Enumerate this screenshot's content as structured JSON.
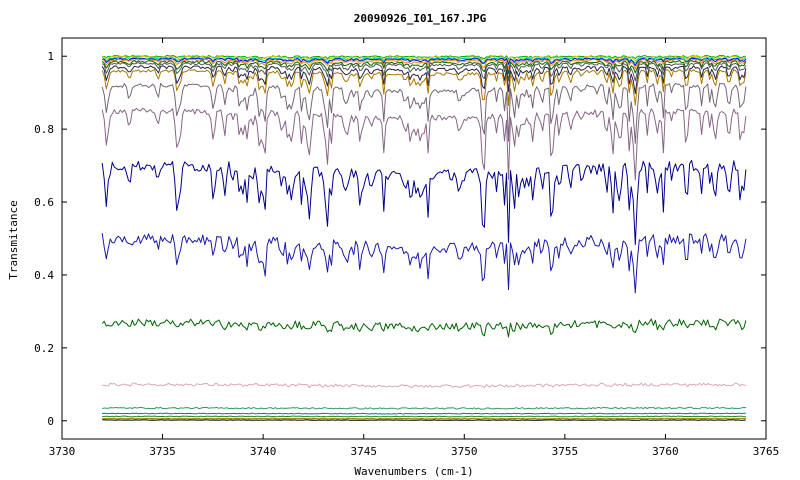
{
  "chart_data": {
    "type": "line",
    "title": "20090926_I01_167.JPG",
    "xlabel": "Wavenumbers (cm-1)",
    "ylabel": "Transmitance",
    "xlim": [
      3730,
      3765
    ],
    "ylim": [
      -0.05,
      1.05
    ],
    "xticks": [
      3730,
      3735,
      3740,
      3745,
      3750,
      3755,
      3760,
      3765
    ],
    "xtick_labels": [
      "3730",
      "3735",
      "3740",
      "3745",
      "3750",
      "3755",
      "3760",
      "3765"
    ],
    "yticks": [
      0,
      0.2,
      0.4,
      0.6,
      0.8,
      1
    ],
    "ytick_labels": [
      "0",
      "0.2",
      "0.4",
      "0.6",
      "0.8",
      "1"
    ],
    "x_range": [
      3732,
      3764
    ],
    "grid": false,
    "legend": "none",
    "series": [
      {
        "color": "#00aa00",
        "baseline": 1.0,
        "depth": 0.004,
        "noise": 0.002
      },
      {
        "color": "#cccc00",
        "baseline": 0.998,
        "depth": 0.006,
        "noise": 0.002
      },
      {
        "color": "#00cccc",
        "baseline": 0.995,
        "depth": 0.008,
        "noise": 0.002
      },
      {
        "color": "#0000ff",
        "baseline": 0.993,
        "depth": 0.01,
        "noise": 0.002
      },
      {
        "color": "#ff8800",
        "baseline": 0.99,
        "depth": 0.014,
        "noise": 0.002
      },
      {
        "color": "#006600",
        "baseline": 0.985,
        "depth": 0.02,
        "noise": 0.003
      },
      {
        "color": "#555555",
        "baseline": 0.98,
        "depth": 0.03,
        "noise": 0.003
      },
      {
        "color": "#222244",
        "baseline": 0.97,
        "depth": 0.045,
        "noise": 0.004
      },
      {
        "color": "#aa7700",
        "baseline": 0.96,
        "depth": 0.06,
        "noise": 0.004
      },
      {
        "color": "#776677",
        "baseline": 0.92,
        "depth": 0.1,
        "noise": 0.006
      },
      {
        "color": "#886688",
        "baseline": 0.85,
        "depth": 0.13,
        "noise": 0.008
      },
      {
        "color": "#00008b",
        "baseline": 0.7,
        "depth": 0.17,
        "noise": 0.015
      },
      {
        "color": "#1a1aaa",
        "baseline": 0.5,
        "depth": 0.16,
        "noise": 0.015
      },
      {
        "color": "#006400",
        "baseline": 0.27,
        "depth": 0.07,
        "noise": 0.01
      },
      {
        "color": "#d8a8b8",
        "baseline": 0.1,
        "depth": 0.03,
        "noise": 0.004
      },
      {
        "color": "#339966",
        "baseline": 0.035,
        "depth": 0.008,
        "noise": 0.002
      },
      {
        "color": "#008080",
        "baseline": 0.02,
        "depth": 0.004,
        "noise": 0.001
      },
      {
        "color": "#228b22",
        "baseline": 0.012,
        "depth": 0.003,
        "noise": 0.001
      },
      {
        "color": "#aa7700",
        "baseline": 0.006,
        "depth": 0.002,
        "noise": 0.001
      },
      {
        "color": "#000000",
        "baseline": 0.002,
        "depth": 0.001,
        "noise": 0.0005
      }
    ]
  }
}
